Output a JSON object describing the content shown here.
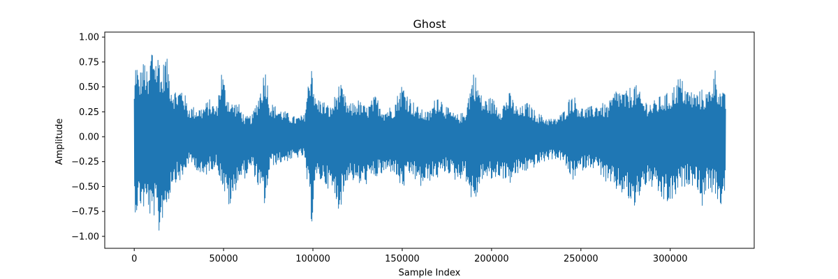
{
  "chart_data": {
    "type": "line",
    "title": "Ghost",
    "xlabel": "Sample Index",
    "ylabel": "Amplitude",
    "xlim": [
      -16500,
      347000
    ],
    "ylim": [
      -1.12,
      1.05
    ],
    "x_ticks": [
      0,
      50000,
      100000,
      150000,
      200000,
      250000,
      300000
    ],
    "x_tick_labels": [
      "0",
      "50000",
      "100000",
      "150000",
      "200000",
      "250000",
      "300000"
    ],
    "y_ticks": [
      1.0,
      0.75,
      0.5,
      0.25,
      0.0,
      -0.25,
      -0.5,
      -0.75,
      -1.0
    ],
    "y_tick_labels": [
      "1.00",
      "0.75",
      "0.50",
      "0.25",
      "0.00",
      "−0.25",
      "−0.50",
      "−0.75",
      "−1.00"
    ],
    "grid": false,
    "series": [
      {
        "color": "#1f77b4",
        "n_samples": 331000,
        "envelope": {
          "x": [
            0,
            1000,
            2500,
            4000,
            6000,
            8000,
            9500,
            11000,
            12500,
            14000,
            15500,
            17000,
            19000,
            21000,
            24000,
            27000,
            30000,
            34000,
            38000,
            42000,
            46000,
            49000,
            51000,
            54000,
            58000,
            62000,
            66000,
            70000,
            73500,
            76000,
            80000,
            85000,
            90000,
            95000,
            99500,
            101000,
            105000,
            110000,
            115000,
            120000,
            125000,
            130000,
            135000,
            140000,
            145000,
            150000,
            155000,
            160000,
            165000,
            170000,
            175000,
            180000,
            185000,
            190000,
            195000,
            200000,
            205000,
            210000,
            215000,
            220000,
            225000,
            230000,
            235000,
            240000,
            245000,
            250000,
            255000,
            260000,
            265000,
            270000,
            275000,
            280000,
            285000,
            290000,
            295000,
            300000,
            305000,
            310000,
            315000,
            318000,
            321000,
            325000,
            328000,
            331000
          ],
          "upper": [
            0.45,
            0.87,
            0.6,
            0.72,
            0.78,
            0.55,
            0.96,
            0.92,
            0.8,
            0.88,
            0.6,
            0.85,
            0.75,
            0.52,
            0.47,
            0.52,
            0.32,
            0.3,
            0.3,
            0.38,
            0.3,
            0.7,
            0.5,
            0.35,
            0.35,
            0.2,
            0.22,
            0.45,
            0.73,
            0.35,
            0.3,
            0.25,
            0.2,
            0.22,
            0.84,
            0.4,
            0.38,
            0.3,
            0.55,
            0.32,
            0.38,
            0.3,
            0.42,
            0.28,
            0.32,
            0.55,
            0.38,
            0.28,
            0.25,
            0.45,
            0.3,
            0.22,
            0.25,
            0.68,
            0.38,
            0.4,
            0.3,
            0.45,
            0.28,
            0.35,
            0.25,
            0.2,
            0.18,
            0.25,
            0.45,
            0.3,
            0.3,
            0.35,
            0.32,
            0.5,
            0.45,
            0.55,
            0.38,
            0.35,
            0.42,
            0.45,
            0.62,
            0.48,
            0.45,
            0.48,
            0.45,
            0.7,
            0.48,
            0.42
          ],
          "lower": [
            -0.7,
            -0.8,
            -0.7,
            -0.72,
            -0.75,
            -0.72,
            -0.92,
            -0.8,
            -0.88,
            -1.02,
            -0.85,
            -0.75,
            -0.7,
            -0.48,
            -0.45,
            -0.45,
            -0.28,
            -0.3,
            -0.45,
            -0.35,
            -0.3,
            -0.48,
            -0.62,
            -0.75,
            -0.45,
            -0.42,
            -0.32,
            -0.55,
            -0.72,
            -0.3,
            -0.28,
            -0.25,
            -0.22,
            -0.2,
            -0.9,
            -0.48,
            -0.45,
            -0.55,
            -0.75,
            -0.4,
            -0.5,
            -0.48,
            -0.42,
            -0.38,
            -0.35,
            -0.55,
            -0.38,
            -0.52,
            -0.45,
            -0.42,
            -0.35,
            -0.45,
            -0.4,
            -0.72,
            -0.42,
            -0.45,
            -0.4,
            -0.48,
            -0.38,
            -0.35,
            -0.3,
            -0.25,
            -0.22,
            -0.25,
            -0.45,
            -0.35,
            -0.3,
            -0.35,
            -0.5,
            -0.55,
            -0.6,
            -0.75,
            -0.5,
            -0.52,
            -0.65,
            -0.7,
            -0.55,
            -0.48,
            -0.5,
            -0.72,
            -0.52,
            -0.6,
            -0.72,
            -0.55
          ]
        }
      }
    ]
  }
}
